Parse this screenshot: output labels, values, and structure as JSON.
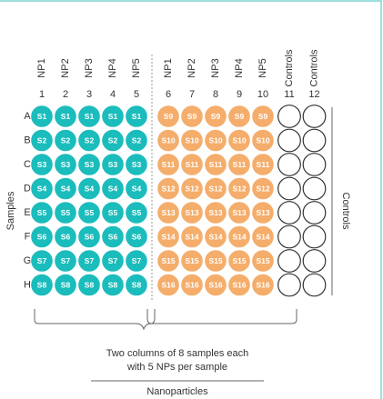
{
  "columns": {
    "headers": [
      "NP1",
      "NP2",
      "NP3",
      "NP4",
      "NP5",
      "NP1",
      "NP2",
      "NP3",
      "NP4",
      "NP5",
      "Controls",
      "Controls"
    ],
    "numbers": [
      "1",
      "2",
      "3",
      "4",
      "5",
      "6",
      "7",
      "8",
      "9",
      "10",
      "11",
      "12"
    ]
  },
  "rows": [
    {
      "letter": "A",
      "left": "S1",
      "right": "S9"
    },
    {
      "letter": "B",
      "left": "S2",
      "right": "S10"
    },
    {
      "letter": "C",
      "left": "S3",
      "right": "S11"
    },
    {
      "letter": "D",
      "left": "S4",
      "right": "S12"
    },
    {
      "letter": "E",
      "left": "S5",
      "right": "S13"
    },
    {
      "letter": "F",
      "left": "S6",
      "right": "S14"
    },
    {
      "letter": "G",
      "left": "S7",
      "right": "S15"
    },
    {
      "letter": "H",
      "left": "S8",
      "right": "S16"
    }
  ],
  "side_labels": {
    "left": "Samples",
    "right": "Controls"
  },
  "caption": {
    "line1": "Two columns of 8 samples each",
    "line2": "with 5 NPs per sample",
    "group": "Nanoparticles"
  }
}
